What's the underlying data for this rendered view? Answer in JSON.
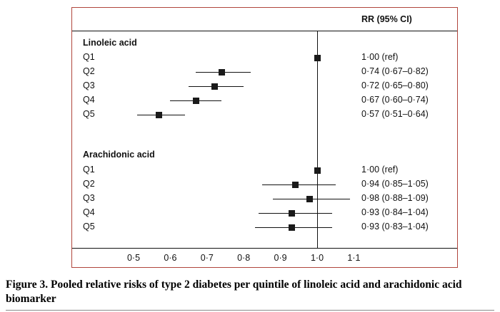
{
  "caption": "Figure 3. Pooled relative risks of type 2 diabetes per quintile of linoleic acid and arachidonic acid biomarker",
  "chart_data": {
    "type": "scatter",
    "subtype": "forest-plot",
    "title": "",
    "column_header": "RR (95% CI)",
    "x_axis": {
      "tick_values": [
        0.5,
        0.6,
        0.7,
        0.8,
        0.9,
        1.0,
        1.1
      ],
      "tick_labels": [
        "0·5",
        "0·6",
        "0·7",
        "0·8",
        "0·9",
        "1·0",
        "1·1"
      ],
      "range": [
        0.45,
        1.15
      ],
      "reference_line": 1.0,
      "grid": false
    },
    "groups": [
      {
        "label": "Linoleic acid",
        "rows": [
          {
            "label": "Q1",
            "rr": 1.0,
            "ci_low": null,
            "ci_high": null,
            "display": "1·00 (ref)"
          },
          {
            "label": "Q2",
            "rr": 0.74,
            "ci_low": 0.67,
            "ci_high": 0.82,
            "display": "0·74 (0·67–0·82)"
          },
          {
            "label": "Q3",
            "rr": 0.72,
            "ci_low": 0.65,
            "ci_high": 0.8,
            "display": "0·72 (0·65–0·80)"
          },
          {
            "label": "Q4",
            "rr": 0.67,
            "ci_low": 0.6,
            "ci_high": 0.74,
            "display": "0·67 (0·60–0·74)"
          },
          {
            "label": "Q5",
            "rr": 0.57,
            "ci_low": 0.51,
            "ci_high": 0.64,
            "display": "0·57 (0·51–0·64)"
          }
        ]
      },
      {
        "label": "Arachidonic acid",
        "rows": [
          {
            "label": "Q1",
            "rr": 1.0,
            "ci_low": null,
            "ci_high": null,
            "display": "1·00 (ref)"
          },
          {
            "label": "Q2",
            "rr": 0.94,
            "ci_low": 0.85,
            "ci_high": 1.05,
            "display": "0·94 (0·85–1·05)"
          },
          {
            "label": "Q3",
            "rr": 0.98,
            "ci_low": 0.88,
            "ci_high": 1.09,
            "display": "0·98 (0·88–1·09)"
          },
          {
            "label": "Q4",
            "rr": 0.93,
            "ci_low": 0.84,
            "ci_high": 1.04,
            "display": "0·93 (0·84–1·04)"
          },
          {
            "label": "Q5",
            "rr": 0.93,
            "ci_low": 0.83,
            "ci_high": 1.04,
            "display": "0·93 (0·83–1·04)"
          }
        ]
      }
    ],
    "colors": {
      "marker": "#1a1a1a",
      "line": "#111111",
      "box_border": "#b0453c",
      "background": "#ffffff"
    }
  }
}
